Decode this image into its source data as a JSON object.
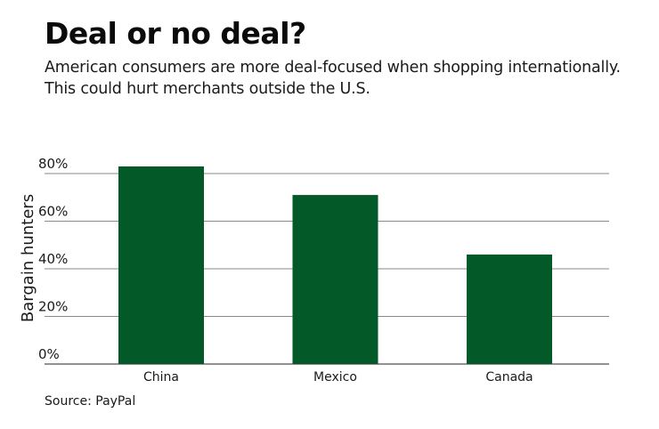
{
  "header": {
    "title": "Deal or no deal?",
    "subtitle": "American consumers are more deal-focused when shopping internationally. This could hurt merchants outside the U.S."
  },
  "footer": {
    "source": "Source: PayPal"
  },
  "colors": {
    "bar": "#035a28",
    "grid": "#8a8a8a",
    "axis": "#6e6e6e"
  },
  "chart_data": {
    "type": "bar",
    "title": "Deal or no deal?",
    "xlabel": "",
    "ylabel": "Bargain hunters",
    "categories": [
      "China",
      "Mexico",
      "Canada"
    ],
    "values": [
      83,
      71,
      46
    ],
    "ylim": [
      0,
      80
    ],
    "yticks": [
      0,
      20,
      40,
      60,
      80
    ],
    "ytick_labels": [
      "0%",
      "20%",
      "40%",
      "60%",
      "80%"
    ],
    "grid": true,
    "legend": "none"
  }
}
